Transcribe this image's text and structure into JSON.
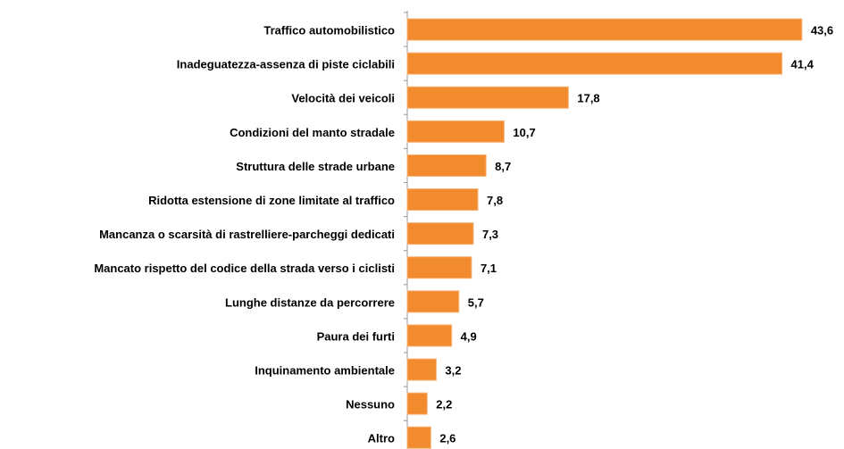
{
  "chart_data": {
    "type": "bar",
    "orientation": "horizontal",
    "categories": [
      "Traffico automobilistico",
      "Inadeguatezza-assenza di piste ciclabili",
      "Velocità dei veicoli",
      "Condizioni del manto stradale",
      "Struttura delle strade urbane",
      "Ridotta estensione di zone limitate al traffico",
      "Mancanza o scarsità di rastrelliere-parcheggi dedicati",
      "Mancato rispetto del codice della strada verso i ciclisti",
      "Lunghe distanze da percorrere",
      "Paura dei furti",
      "Inquinamento ambientale",
      "Nessuno",
      "Altro"
    ],
    "values": [
      43.6,
      41.4,
      17.8,
      10.7,
      8.7,
      7.8,
      7.3,
      7.1,
      5.7,
      4.9,
      3.2,
      2.2,
      2.6
    ],
    "value_labels": [
      "43,6",
      "41,4",
      "17,8",
      "10,7",
      "8,7",
      "7,8",
      "7,3",
      "7,1",
      "5,7",
      "4,9",
      "3,2",
      "2,2",
      "2,6"
    ],
    "color": "#f28a2e",
    "xlim": [
      0,
      45
    ]
  }
}
